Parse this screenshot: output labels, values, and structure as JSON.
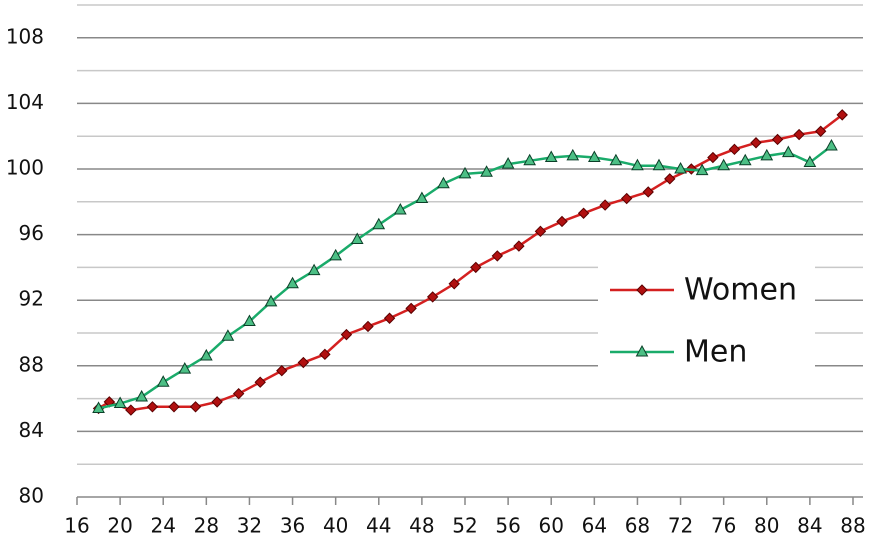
{
  "chart_data": {
    "type": "line",
    "x": [
      18,
      19,
      21,
      23,
      25,
      27,
      29,
      31,
      33,
      35,
      37,
      39,
      41,
      43,
      45,
      47,
      49,
      51,
      53,
      55,
      57,
      59,
      61,
      63,
      65,
      67,
      69,
      71,
      73,
      75,
      77,
      79,
      81,
      83,
      85,
      87
    ],
    "series": [
      {
        "name": "Women",
        "color": "#d42020",
        "marker": "diamond",
        "x": [
          18,
          19,
          21,
          23,
          25,
          27,
          29,
          31,
          33,
          35,
          37,
          39,
          41,
          43,
          45,
          47,
          49,
          51,
          53,
          55,
          57,
          59,
          61,
          63,
          65,
          67,
          69,
          71,
          73,
          75,
          77,
          79,
          81,
          83,
          85,
          87
        ],
        "values": [
          85.4,
          85.8,
          85.3,
          85.5,
          85.5,
          85.5,
          85.8,
          86.3,
          87.0,
          87.7,
          88.2,
          88.7,
          89.9,
          90.4,
          90.9,
          91.5,
          92.2,
          93.0,
          94.0,
          94.7,
          95.3,
          96.2,
          96.8,
          97.3,
          97.8,
          98.2,
          98.6,
          99.4,
          100.0,
          100.7,
          101.2,
          101.6,
          101.8,
          102.1,
          102.3,
          103.3
        ]
      },
      {
        "name": "Men",
        "color": "#1aab6a",
        "marker": "triangle",
        "x": [
          18,
          20,
          22,
          24,
          26,
          28,
          30,
          32,
          34,
          36,
          38,
          40,
          42,
          44,
          46,
          48,
          50,
          52,
          54,
          56,
          58,
          60,
          62,
          64,
          66,
          68,
          70,
          72,
          74,
          76,
          78,
          80,
          82,
          84,
          86
        ],
        "values": [
          85.4,
          85.7,
          86.1,
          87.0,
          87.8,
          88.6,
          89.8,
          90.7,
          91.9,
          93.0,
          93.8,
          94.7,
          95.7,
          96.6,
          97.5,
          98.2,
          99.1,
          99.7,
          99.8,
          100.3,
          100.5,
          100.7,
          100.8,
          100.7,
          100.5,
          100.2,
          100.2,
          100.0,
          99.9,
          100.2,
          100.5,
          100.8,
          101.0,
          100.4,
          101.4
        ]
      }
    ],
    "xlim": [
      16,
      88
    ],
    "xticks": [
      16,
      20,
      24,
      28,
      32,
      36,
      40,
      44,
      48,
      52,
      56,
      60,
      64,
      68,
      72,
      76,
      80,
      84,
      88
    ],
    "ylim": [
      80,
      110
    ],
    "yticks": [
      80,
      84,
      88,
      92,
      96,
      100,
      104,
      108
    ],
    "y_minor_ticks": [
      82,
      86,
      90,
      94,
      98,
      102,
      106,
      110
    ],
    "grid": true,
    "legend": "right"
  }
}
